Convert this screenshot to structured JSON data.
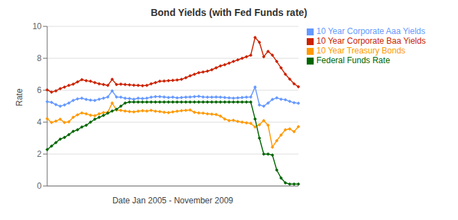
{
  "chart_data": {
    "type": "line",
    "title": "Bond Yields (with Fed Funds rate)",
    "xlabel": "Date Jan 2005 - November 2009",
    "ylabel": "Rate",
    "categories": [
      null,
      null,
      null,
      null,
      null,
      null,
      null,
      null,
      null,
      null,
      null,
      null,
      null,
      null,
      null,
      null,
      null,
      null,
      null,
      null,
      null,
      null,
      null,
      null,
      null,
      null,
      null,
      null,
      null,
      null,
      null,
      null,
      null,
      null,
      null,
      null,
      null,
      null,
      null,
      null,
      null,
      null,
      null,
      null,
      null,
      null,
      null,
      null,
      null,
      null,
      null,
      null,
      null,
      null,
      null,
      null,
      null,
      null,
      null
    ],
    "ylim": [
      0,
      10
    ],
    "yticks": [
      0,
      2,
      4,
      6,
      8,
      10
    ],
    "grid": true,
    "legend": "right",
    "tick_labels": "y",
    "marker": "diamond",
    "series": [
      {
        "name": "10 Year Corporate Aaa Yields",
        "color": "#6699FF",
        "values": [
          5.28,
          5.24,
          5.1,
          5.0,
          5.08,
          5.2,
          5.36,
          5.46,
          5.5,
          5.42,
          5.38,
          5.36,
          5.44,
          5.5,
          5.58,
          5.96,
          5.58,
          5.56,
          5.5,
          5.48,
          5.44,
          5.5,
          5.48,
          5.5,
          5.56,
          5.6,
          5.6,
          5.58,
          5.54,
          5.56,
          5.52,
          5.54,
          5.56,
          5.58,
          5.6,
          5.62,
          5.58,
          5.56,
          5.56,
          5.58,
          5.56,
          5.54,
          5.52,
          5.5,
          5.52,
          5.54,
          5.56,
          5.58,
          6.2,
          5.08,
          5.0,
          5.2,
          5.42,
          5.52,
          5.44,
          5.4,
          5.3,
          5.22,
          5.18
        ]
      },
      {
        "name": "10 Year Corporate Baa Yields",
        "color": "#CC2200",
        "values": [
          6.02,
          5.88,
          5.96,
          6.1,
          6.2,
          6.3,
          6.38,
          6.52,
          6.66,
          6.6,
          6.56,
          6.48,
          6.4,
          6.36,
          6.3,
          6.68,
          6.36,
          6.38,
          6.36,
          6.34,
          6.32,
          6.3,
          6.28,
          6.3,
          6.4,
          6.48,
          6.56,
          6.58,
          6.6,
          6.62,
          6.64,
          6.68,
          6.78,
          6.9,
          7.0,
          7.1,
          7.14,
          7.2,
          7.28,
          7.4,
          7.52,
          7.6,
          7.7,
          7.8,
          7.9,
          8.0,
          8.1,
          8.2,
          9.3,
          9.0,
          8.1,
          8.44,
          8.2,
          7.8,
          7.4,
          7.0,
          6.7,
          6.4,
          6.22
        ]
      },
      {
        "name": "10 Year Treasury Bonds",
        "color": "#FF9900",
        "values": [
          4.22,
          3.98,
          4.06,
          4.18,
          3.98,
          4.02,
          4.3,
          4.46,
          4.58,
          4.52,
          4.44,
          4.4,
          4.52,
          4.6,
          4.62,
          5.2,
          4.76,
          4.74,
          4.7,
          4.66,
          4.64,
          4.68,
          4.72,
          4.7,
          4.74,
          4.68,
          4.66,
          4.62,
          4.6,
          4.64,
          4.68,
          4.72,
          4.74,
          4.76,
          4.62,
          4.58,
          4.56,
          4.52,
          4.5,
          4.48,
          4.38,
          4.2,
          4.1,
          4.12,
          4.04,
          4.0,
          3.96,
          3.92,
          3.7,
          3.84,
          4.1,
          3.8,
          2.44,
          2.84,
          3.2,
          3.52,
          3.58,
          3.4,
          3.72
        ]
      },
      {
        "name": "Federal Funds Rate",
        "color": "#006600",
        "values": [
          2.28,
          2.5,
          2.72,
          2.94,
          3.04,
          3.22,
          3.42,
          3.52,
          3.7,
          3.8,
          4.0,
          4.18,
          4.3,
          4.42,
          4.56,
          4.7,
          4.8,
          5.0,
          5.2,
          5.26,
          5.26,
          5.26,
          5.26,
          5.26,
          5.26,
          5.26,
          5.26,
          5.26,
          5.26,
          5.26,
          5.26,
          5.26,
          5.26,
          5.26,
          5.26,
          5.26,
          5.26,
          5.26,
          5.26,
          5.26,
          5.26,
          5.26,
          5.26,
          5.26,
          5.26,
          5.26,
          5.26,
          5.26,
          4.2,
          3.0,
          2.0,
          2.0,
          1.94,
          1.0,
          0.5,
          0.2,
          0.12,
          0.12,
          0.12
        ]
      }
    ]
  }
}
